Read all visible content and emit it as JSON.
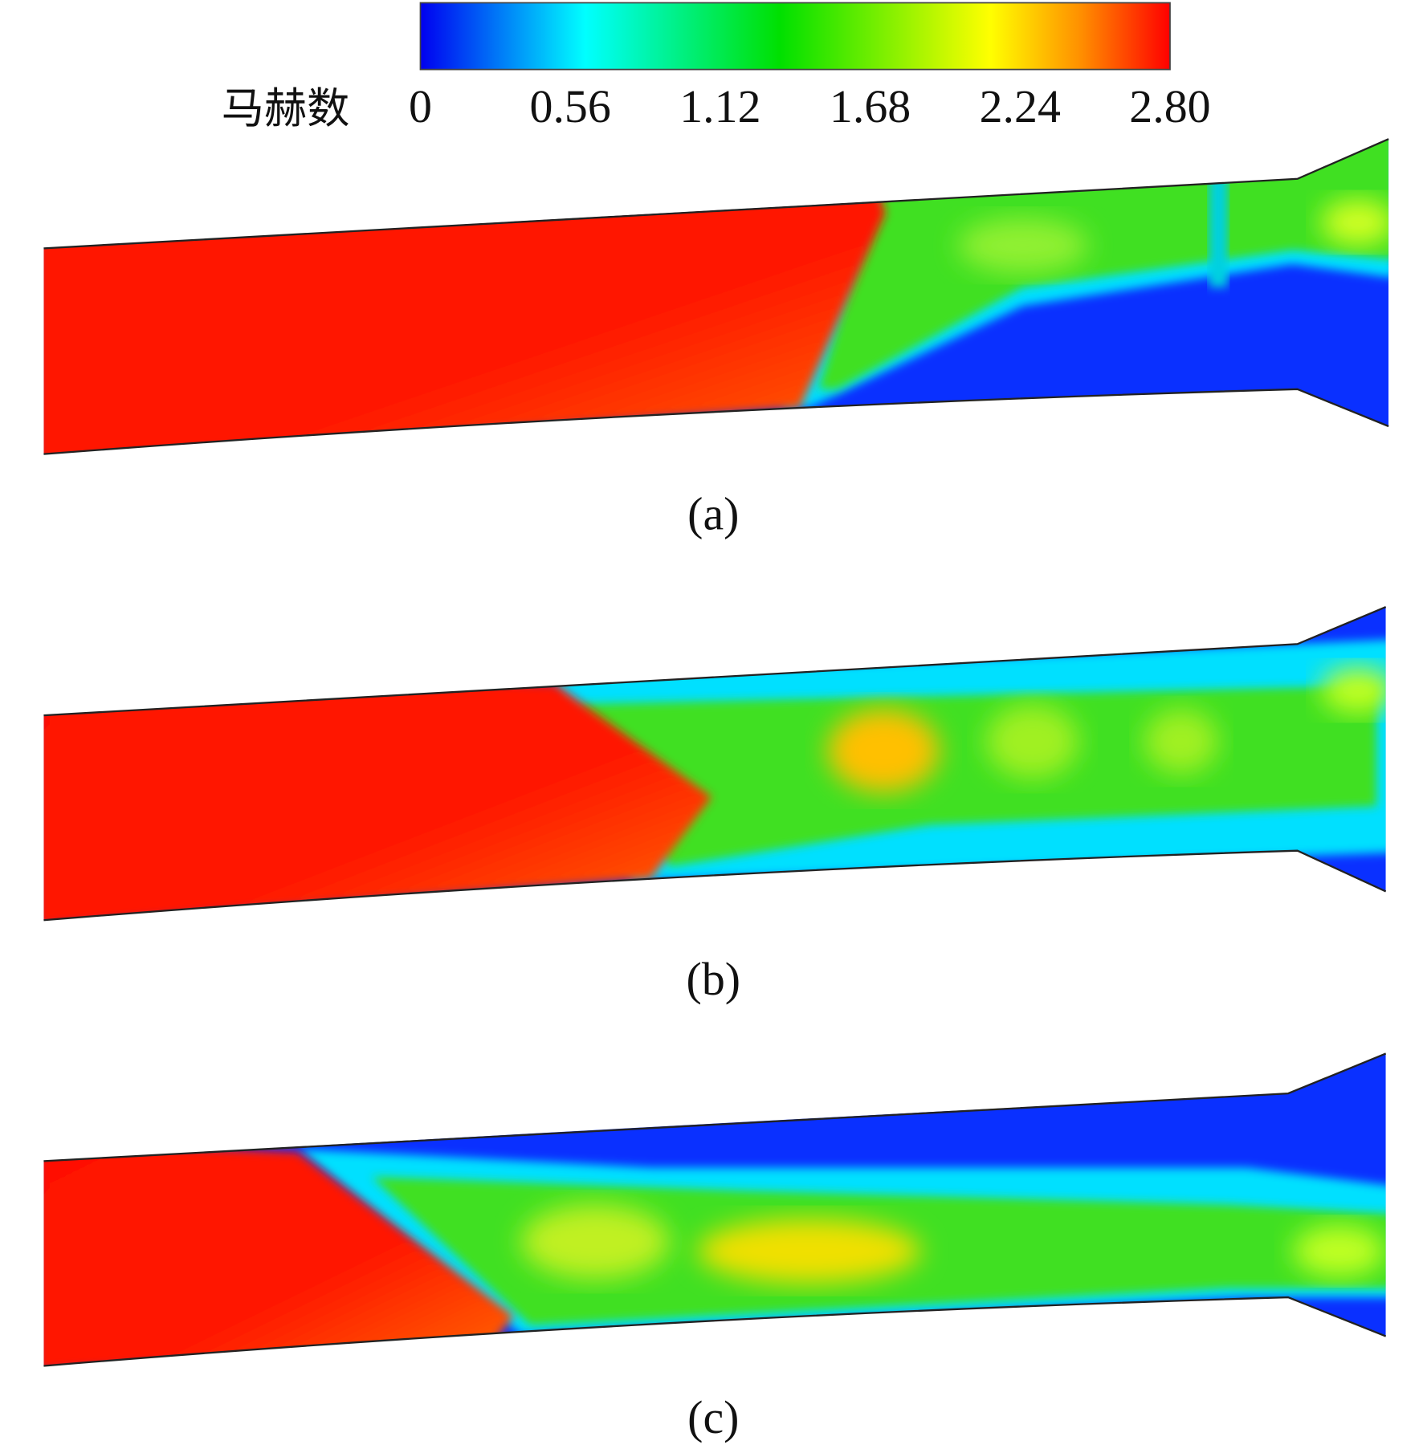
{
  "colorbar": {
    "label": "马赫数",
    "ticks": [
      0,
      0.56,
      1.12,
      1.68,
      2.24,
      {
        "value": 2.8,
        "label": "2.80"
      }
    ]
  },
  "panels": [
    {
      "caption": "(a)"
    },
    {
      "caption": "(b)"
    },
    {
      "caption": "(c)"
    }
  ]
}
